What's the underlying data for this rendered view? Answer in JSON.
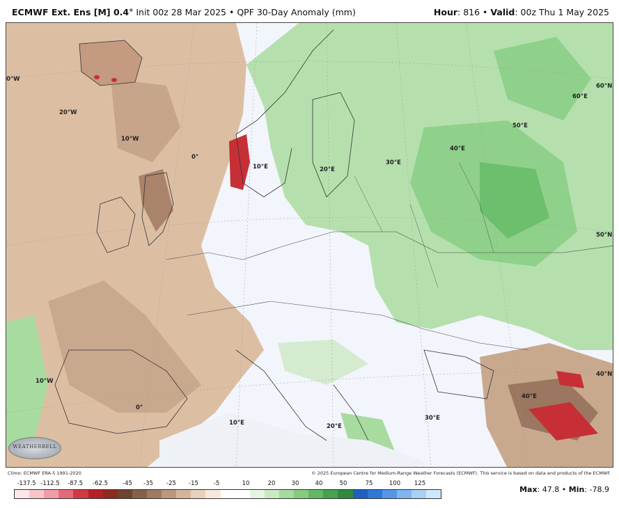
{
  "header": {
    "model": "ECMWF Ext. Ens [M] 0.4",
    "deg": "°",
    "init": " Init 00z 28 Mar 2025",
    "sep": " • ",
    "product": "QPF 30-Day Anomaly (mm)",
    "hour_label": "Hour",
    "hour_value": ": 816",
    "valid_label": "Valid",
    "valid_value": ": 00z Thu 1 May 2025"
  },
  "map_labels": {
    "lon_0w_top": "0°W",
    "lon_20w": "20°W",
    "lon_10w_top": "10°W",
    "lon_0_top": "0°",
    "lon_10e_top": "10°E",
    "lon_20e_top": "20°E",
    "lon_30e_top": "30°E",
    "lon_40e_top": "40°E",
    "lon_50e_top": "50°E",
    "lon_60e_top": "60°E",
    "lat_60n": "60°N",
    "lat_50n": "50°N",
    "lat_40n": "40°N",
    "lon_10w_bot": "10°W",
    "lon_0_bot": "0°",
    "lon_10e_bot": "10°E",
    "lon_20e_bot": "20°E",
    "lon_30e_bot": "30°E",
    "lon_40e_bot": "40°E"
  },
  "logo_text": "WEATHERBELL",
  "credits": {
    "left": "Climo: ECMWF ERA-5 1991-2020",
    "right": "© 2025 European Centre for Medium-Range Weather Forecasts (ECMWF). This service is based on data and products of the ECMWF."
  },
  "scale": {
    "labels": [
      "-137.5",
      "-112.5",
      "-87.5",
      "-62.5",
      "-45",
      "-35",
      "-25",
      "-15",
      "-5",
      "10",
      "20",
      "30",
      "40",
      "50",
      "75",
      "100",
      "125"
    ],
    "colors": [
      "#fde6ea",
      "#f8c4cc",
      "#f19ca8",
      "#e36a78",
      "#cf3a44",
      "#b71f28",
      "#8f2a20",
      "#6f4330",
      "#85604a",
      "#a07a62",
      "#bb977c",
      "#d4b59c",
      "#e8d2bd",
      "#f5e9de",
      "#ffffff",
      "#ffffff",
      "#e6f4e3",
      "#c9e9c3",
      "#a6dba0",
      "#84cc80",
      "#63b865",
      "#46a24e",
      "#2f8a3f",
      "#1f5fc0",
      "#2f77d8",
      "#5596e6",
      "#7fb4ef",
      "#a8d0f5",
      "#cfe7fb"
    ]
  },
  "stats": {
    "max_label": "Max",
    "max_value": ": 47.8",
    "min_label": "Min",
    "min_value": ": -78.9",
    "sep": " • "
  },
  "colors": {
    "dry": "#d9b89a",
    "very_dry": "#b88e72",
    "extreme_dry": "#c62f36",
    "wet": "#a8dba0",
    "very_wet": "#6cbf6c",
    "neutral": "#f2f5fb"
  }
}
